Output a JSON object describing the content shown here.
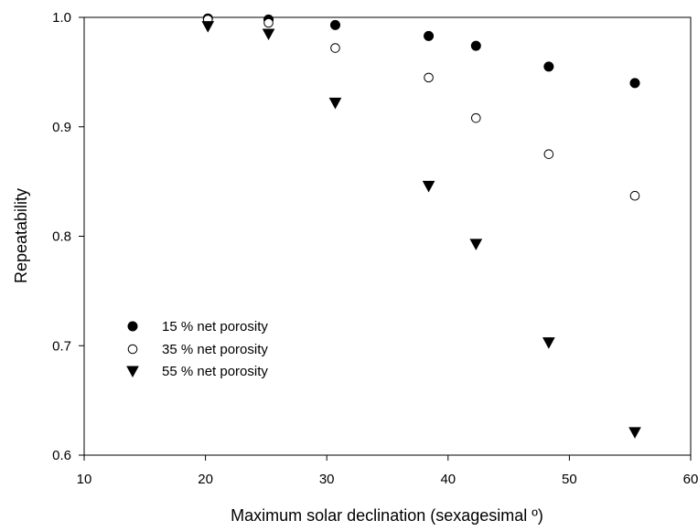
{
  "chart_data": {
    "type": "scatter",
    "title": "",
    "xlabel": "Maximum solar declination (sexagesimal º)",
    "ylabel": "Repeatability",
    "xlim": [
      10,
      60
    ],
    "ylim": [
      0.6,
      1.0
    ],
    "xticks": [
      "10",
      "20",
      "30",
      "40",
      "50",
      "60"
    ],
    "yticks": [
      "0.6",
      "0.7",
      "0.8",
      "0.9",
      "1.0"
    ],
    "grid": false,
    "legend_position": "lower-left",
    "x": [
      20.2,
      25.2,
      30.7,
      38.4,
      42.3,
      48.3,
      55.4
    ],
    "series": [
      {
        "name": "15 % net porosity",
        "marker": "filled-circle",
        "color": "#000000",
        "values": [
          0.999,
          0.998,
          0.993,
          0.983,
          0.974,
          0.955,
          0.94
        ]
      },
      {
        "name": "35 % net porosity",
        "marker": "open-circle",
        "color": "#000000",
        "values": [
          0.998,
          0.995,
          0.972,
          0.945,
          0.908,
          0.875,
          0.837
        ]
      },
      {
        "name": "55 % net porosity",
        "marker": "filled-triangle-down",
        "color": "#000000",
        "values": [
          0.992,
          0.985,
          0.922,
          0.846,
          0.793,
          0.703,
          0.621
        ]
      }
    ]
  }
}
